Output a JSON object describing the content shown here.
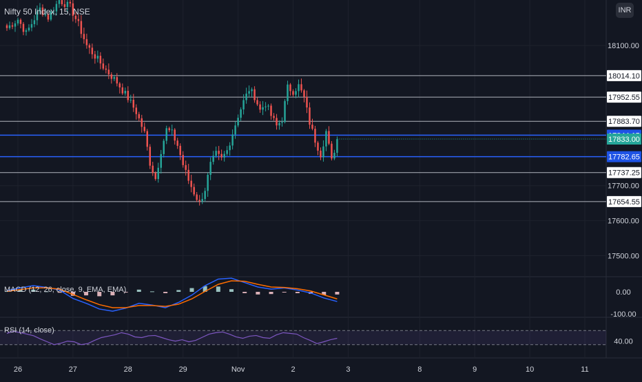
{
  "chart": {
    "title": "Nifty 50 Index, 15, NSE",
    "currency_badge": "INR",
    "colors": {
      "background": "#131722",
      "grid": "#1e222d",
      "text": "#d1d4dc",
      "up": "#26a69a",
      "down": "#ef5350",
      "level_line": "#b2b5be",
      "blue_line": "#2962ff",
      "macd_line": "#2962ff",
      "signal_line": "#ff6d00",
      "rsi_line": "#7e57c2",
      "price_badge": "#26a69a",
      "blue_badge": "#1e53e5"
    }
  },
  "chart_data": [
    {
      "type": "candlestick",
      "title": "Nifty 50 Index, 15, NSE",
      "x_ticks": [
        "26",
        "27",
        "28",
        "29",
        "Nov",
        "2",
        "3",
        "8",
        "9",
        "10",
        "11"
      ],
      "y_ticks": [
        "18100.00",
        "17700.00",
        "17600.00",
        "17500.00"
      ],
      "ylim": [
        17440,
        18230
      ],
      "horizontal_levels": [
        {
          "label": "18014.10",
          "value": 18014.1,
          "style": "grey"
        },
        {
          "label": "17952.55",
          "value": 17952.55,
          "style": "grey"
        },
        {
          "label": "17883.70",
          "value": 17883.7,
          "style": "grey"
        },
        {
          "label": "17844.15",
          "value": 17844.15,
          "style": "blue"
        },
        {
          "label": "17782.65",
          "value": 17782.65,
          "style": "blue"
        },
        {
          "label": "17737.25",
          "value": 17737.25,
          "style": "grey"
        },
        {
          "label": "17654.55",
          "value": 17654.55,
          "style": "grey"
        }
      ],
      "last_price": {
        "label": "17833.00",
        "value": 17833.0
      },
      "anchors": [
        {
          "i": 0,
          "v": 18150
        },
        {
          "i": 4,
          "v": 18175
        },
        {
          "i": 7,
          "v": 18135
        },
        {
          "i": 12,
          "v": 18205
        },
        {
          "i": 15,
          "v": 18180
        },
        {
          "i": 19,
          "v": 18230
        },
        {
          "i": 23,
          "v": 18210
        },
        {
          "i": 26,
          "v": 18160
        },
        {
          "i": 29,
          "v": 18100
        },
        {
          "i": 32,
          "v": 18070
        },
        {
          "i": 36,
          "v": 18030
        },
        {
          "i": 40,
          "v": 17995
        },
        {
          "i": 44,
          "v": 17950
        },
        {
          "i": 47,
          "v": 17910
        },
        {
          "i": 50,
          "v": 17850
        },
        {
          "i": 52,
          "v": 17765
        },
        {
          "i": 54,
          "v": 17720
        },
        {
          "i": 56,
          "v": 17800
        },
        {
          "i": 58,
          "v": 17860
        },
        {
          "i": 60,
          "v": 17850
        },
        {
          "i": 62,
          "v": 17815
        },
        {
          "i": 64,
          "v": 17760
        },
        {
          "i": 66,
          "v": 17715
        },
        {
          "i": 68,
          "v": 17680
        },
        {
          "i": 70,
          "v": 17650
        },
        {
          "i": 72,
          "v": 17690
        },
        {
          "i": 74,
          "v": 17760
        },
        {
          "i": 76,
          "v": 17790
        },
        {
          "i": 78,
          "v": 17775
        },
        {
          "i": 80,
          "v": 17800
        },
        {
          "i": 82,
          "v": 17850
        },
        {
          "i": 84,
          "v": 17900
        },
        {
          "i": 86,
          "v": 17940
        },
        {
          "i": 88,
          "v": 17975
        },
        {
          "i": 90,
          "v": 17955
        },
        {
          "i": 92,
          "v": 17915
        },
        {
          "i": 94,
          "v": 17935
        },
        {
          "i": 96,
          "v": 17900
        },
        {
          "i": 98,
          "v": 17870
        },
        {
          "i": 100,
          "v": 17890
        },
        {
          "i": 102,
          "v": 17980
        },
        {
          "i": 104,
          "v": 17970
        },
        {
          "i": 106,
          "v": 17985
        },
        {
          "i": 108,
          "v": 17950
        },
        {
          "i": 110,
          "v": 17880
        },
        {
          "i": 112,
          "v": 17830
        },
        {
          "i": 114,
          "v": 17790
        },
        {
          "i": 116,
          "v": 17855
        },
        {
          "i": 118,
          "v": 17770
        },
        {
          "i": 120,
          "v": 17833
        }
      ],
      "candle_count": 121,
      "x_tick_candle_index": [
        4,
        24,
        44,
        64,
        84,
        104,
        124,
        150,
        170,
        190,
        210
      ],
      "x_candle_span": [
        0,
        214
      ]
    },
    {
      "type": "line",
      "title": "MACD (12, 26, close, 9, EMA, EMA)",
      "y_ticks": [
        "0.00",
        "-100.00"
      ],
      "series": [
        {
          "name": "MACD",
          "values": [
            5,
            18,
            28,
            20,
            8,
            -30,
            -52,
            -78,
            -88,
            -74,
            -52,
            -60,
            -72,
            -48,
            -15,
            28,
            58,
            62,
            42,
            22,
            12,
            18,
            8,
            -5,
            -28,
            -44
          ]
        },
        {
          "name": "Signal",
          "values": [
            2,
            10,
            18,
            18,
            12,
            -12,
            -36,
            -58,
            -72,
            -72,
            -62,
            -62,
            -66,
            -56,
            -32,
            2,
            34,
            50,
            48,
            34,
            22,
            20,
            14,
            4,
            -14,
            -32
          ]
        }
      ],
      "histogram": [
        3,
        8,
        10,
        2,
        -4,
        -18,
        -16,
        -20,
        -16,
        -2,
        10,
        2,
        -6,
        8,
        17,
        26,
        24,
        12,
        -6,
        -12,
        -10,
        -2,
        -6,
        -9,
        -14,
        -12
      ]
    },
    {
      "type": "line",
      "title": "RSI (14, close)",
      "y_ticks": [
        "40.00"
      ],
      "ylim": [
        0,
        100
      ],
      "bands": [
        70,
        30
      ],
      "series": [
        {
          "name": "RSI",
          "values": [
            62,
            68,
            64,
            60,
            55,
            46,
            38,
            30,
            34,
            40,
            38,
            30,
            33,
            42,
            50,
            54,
            58,
            64,
            60,
            52,
            50,
            55,
            56,
            50,
            44,
            40,
            44,
            38,
            42,
            51,
            60,
            64,
            66,
            60,
            52,
            48,
            54,
            56,
            50,
            48,
            58,
            64,
            62,
            60,
            50,
            42,
            33,
            38,
            44,
            48
          ]
        }
      ]
    }
  ]
}
